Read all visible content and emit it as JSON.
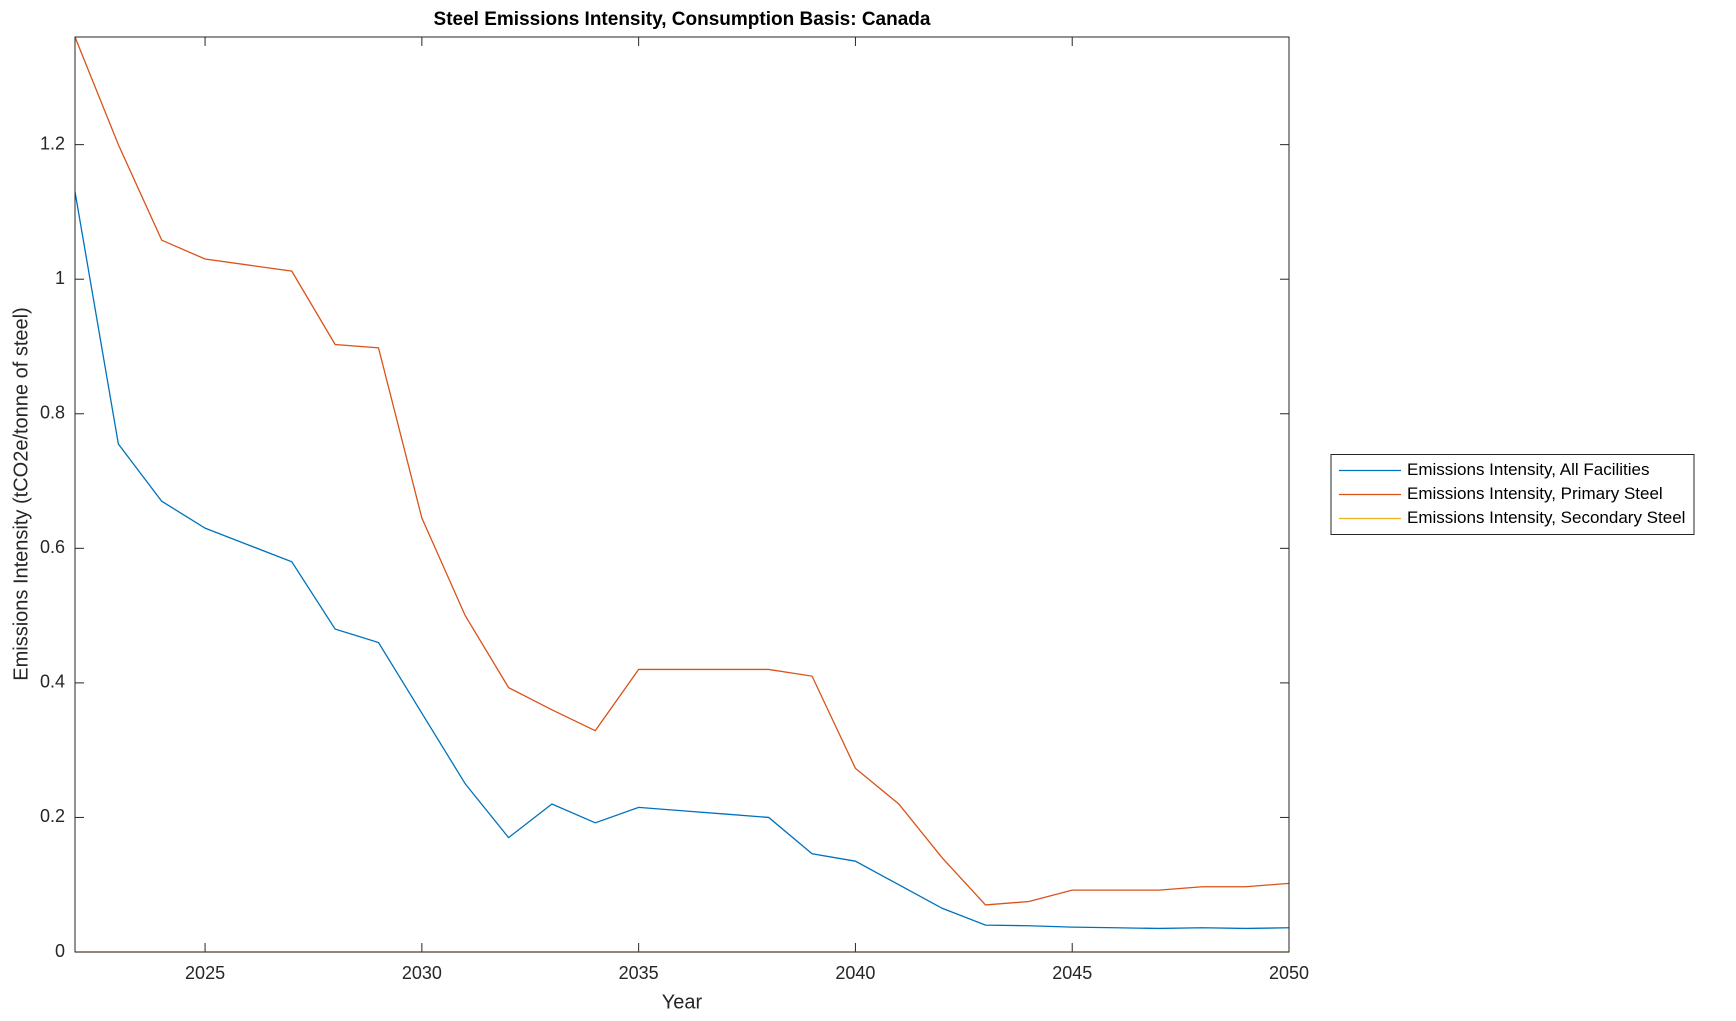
{
  "chart_data": {
    "type": "line",
    "title": "Steel Emissions Intensity, Consumption Basis: Canada",
    "x_label": "Year",
    "y_label": "Emissions Intensity (tCO2e/tonne of steel)",
    "x": [
      2022,
      2023,
      2024,
      2025,
      2026,
      2027,
      2028,
      2029,
      2030,
      2031,
      2032,
      2033,
      2034,
      2035,
      2036,
      2037,
      2038,
      2039,
      2040,
      2041,
      2042,
      2043,
      2044,
      2045,
      2046,
      2047,
      2048,
      2049,
      2050
    ],
    "series": [
      {
        "name": "Emissions Intensity, All Facilities",
        "color": "#0072BD",
        "values": [
          1.13,
          0.755,
          0.67,
          0.63,
          0.605,
          0.58,
          0.48,
          0.46,
          0.355,
          0.25,
          0.17,
          0.22,
          0.192,
          0.215,
          0.21,
          0.205,
          0.2,
          0.146,
          0.135,
          0.1,
          0.065,
          0.04,
          0.039,
          0.037,
          0.036,
          0.035,
          0.036,
          0.035,
          0.036
        ]
      },
      {
        "name": "Emissions Intensity, Primary Steel",
        "color": "#D95319",
        "values": [
          1.36,
          1.2,
          1.058,
          1.03,
          1.021,
          1.012,
          0.903,
          0.898,
          0.645,
          0.5,
          0.393,
          0.36,
          0.329,
          0.42,
          0.42,
          0.42,
          0.42,
          0.41,
          0.273,
          0.22,
          0.14,
          0.07,
          0.075,
          0.092,
          0.092,
          0.092,
          0.097,
          0.097,
          0.102
        ]
      },
      {
        "name": "Emissions Intensity, Secondary Steel",
        "color": "#EDB120",
        "values": [
          0,
          0,
          0,
          0,
          0,
          0,
          0,
          0,
          0,
          0,
          0,
          0,
          0,
          0,
          0,
          0,
          0,
          0,
          0,
          0,
          0,
          0,
          0,
          0,
          0,
          0,
          0,
          0,
          0
        ]
      }
    ],
    "xlim": [
      2022,
      2050
    ],
    "xticks": [
      2025,
      2030,
      2035,
      2040,
      2045,
      2050
    ],
    "ylim": [
      0,
      1.36
    ],
    "yticks": [
      0,
      0.2,
      0.4,
      0.6,
      0.8,
      1,
      1.2
    ],
    "grid": false,
    "legend": "eastoutside"
  }
}
